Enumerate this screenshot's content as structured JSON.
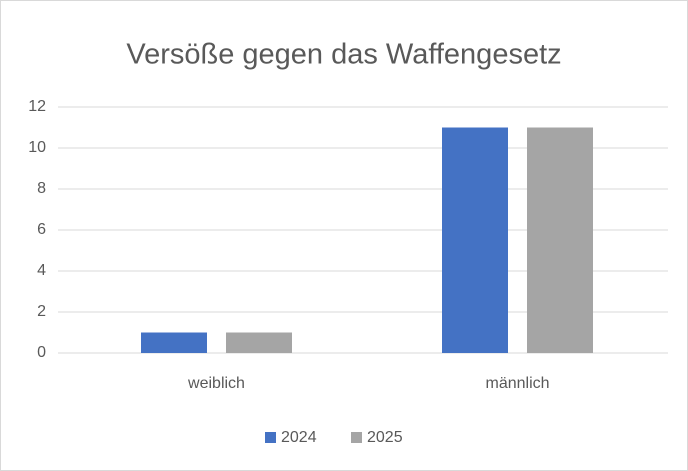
{
  "chart_data": {
    "type": "bar",
    "title": "Versöße gegen das Waffengesetz",
    "categories": [
      "weiblich",
      "männlich"
    ],
    "series": [
      {
        "name": "2024",
        "color": "#4472c4",
        "values": [
          1,
          11
        ]
      },
      {
        "name": "2025",
        "color": "#a5a5a5",
        "values": [
          1,
          11
        ]
      }
    ],
    "ylim": [
      0,
      12
    ],
    "yticks": [
      0,
      2,
      4,
      6,
      8,
      10,
      12
    ],
    "grid": true,
    "legend": "bottom"
  }
}
